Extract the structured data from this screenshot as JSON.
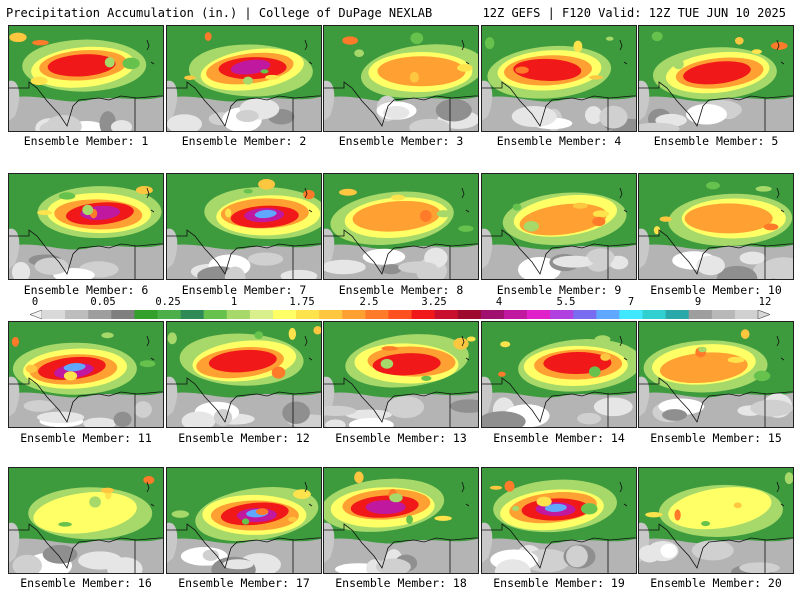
{
  "header": {
    "left": "Precipitation Accumulation (in.) | College of DuPage NEXLAB",
    "right": "12Z GEFS | F120 Valid: 12Z TUE JUN 10 2025"
  },
  "colorbar": {
    "labels": [
      "0",
      "0.05",
      "0.25",
      "1",
      "1.75",
      "2.5",
      "3.25",
      "4",
      "5.5",
      "7",
      "9",
      "12"
    ],
    "colors": [
      "#d9d9d9",
      "#bdbdbd",
      "#9e9e9e",
      "#7f7f7f",
      "#33a02c",
      "#4daf4a",
      "#2e8b57",
      "#66c24d",
      "#a6d96a",
      "#d9ef8b",
      "#ffff66",
      "#ffe34d",
      "#ffc640",
      "#ffa033",
      "#ff7a29",
      "#ff5020",
      "#f01818",
      "#c8102e",
      "#9e0a2e",
      "#a0106e",
      "#c0189e",
      "#e020c8",
      "#b040e0",
      "#7a6cf0",
      "#60a8ff",
      "#40e8ff",
      "#30d0d0",
      "#28a8a8",
      "#9e9e9e",
      "#b8b8b8",
      "#d0d0d0"
    ]
  },
  "panels": [
    {
      "label": "Ensemble Member: 1",
      "intensity": 3
    },
    {
      "label": "Ensemble Member: 2",
      "intensity": 4
    },
    {
      "label": "Ensemble Member: 3",
      "intensity": 2
    },
    {
      "label": "Ensemble Member: 4",
      "intensity": 3
    },
    {
      "label": "Ensemble Member: 5",
      "intensity": 3
    },
    {
      "label": "Ensemble Member: 6",
      "intensity": 4
    },
    {
      "label": "Ensemble Member: 7",
      "intensity": 5
    },
    {
      "label": "Ensemble Member: 8",
      "intensity": 2
    },
    {
      "label": "Ensemble Member: 9",
      "intensity": 2
    },
    {
      "label": "Ensemble Member: 10",
      "intensity": 2
    },
    {
      "label": "Ensemble Member: 11",
      "intensity": 5
    },
    {
      "label": "Ensemble Member: 12",
      "intensity": 3
    },
    {
      "label": "Ensemble Member: 13",
      "intensity": 3
    },
    {
      "label": "Ensemble Member: 14",
      "intensity": 3
    },
    {
      "label": "Ensemble Member: 15",
      "intensity": 2
    },
    {
      "label": "Ensemble Member: 16",
      "intensity": 1
    },
    {
      "label": "Ensemble Member: 17",
      "intensity": 5
    },
    {
      "label": "Ensemble Member: 18",
      "intensity": 4
    },
    {
      "label": "Ensemble Member: 19",
      "intensity": 5
    },
    {
      "label": "Ensemble Member: 20",
      "intensity": 1
    }
  ]
}
